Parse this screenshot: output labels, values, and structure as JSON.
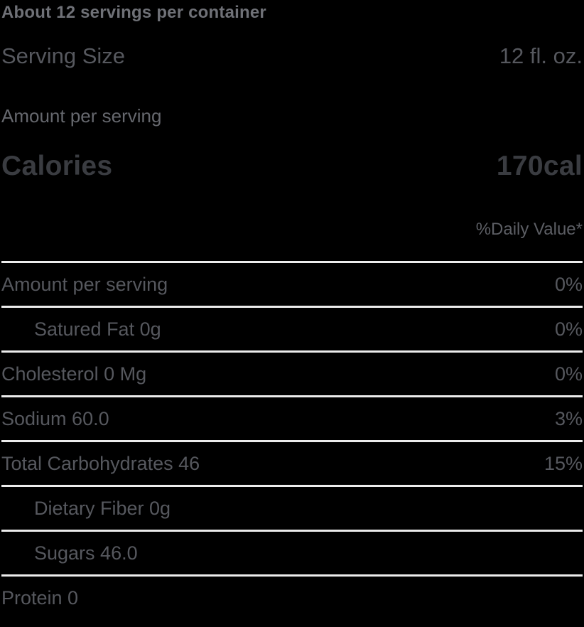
{
  "label": {
    "servings_per_container": "About 12 servings per container",
    "serving_size": {
      "label": "Serving Size",
      "value": "12 fl. oz."
    },
    "amount_per_serving_heading": "Amount per serving",
    "calories": {
      "label": "Calories",
      "value": "170cal"
    },
    "daily_value_heading": "%Daily Value*",
    "rows": [
      {
        "name": "Amount per serving",
        "daily_value": "0%",
        "indent": false
      },
      {
        "name": "Satured Fat 0g",
        "daily_value": "0%",
        "indent": true
      },
      {
        "name": "Cholesterol 0 Mg",
        "daily_value": "0%",
        "indent": false
      },
      {
        "name": "Sodium 60.0",
        "daily_value": "3%",
        "indent": false
      },
      {
        "name": "Total Carbohydrates 46",
        "daily_value": "15%",
        "indent": false
      },
      {
        "name": "Dietary Fiber 0g",
        "daily_value": "",
        "indent": true
      },
      {
        "name": "Sugars 46.0",
        "daily_value": "",
        "indent": true
      },
      {
        "name": "Protein 0",
        "daily_value": "",
        "indent": false
      }
    ],
    "colors": {
      "background": "#000000",
      "divider": "#ececec",
      "text_primary": "#56585e",
      "text_bold": "#3a3c41",
      "text_muted": "#6f7177",
      "text_heading": "#66686e"
    }
  }
}
